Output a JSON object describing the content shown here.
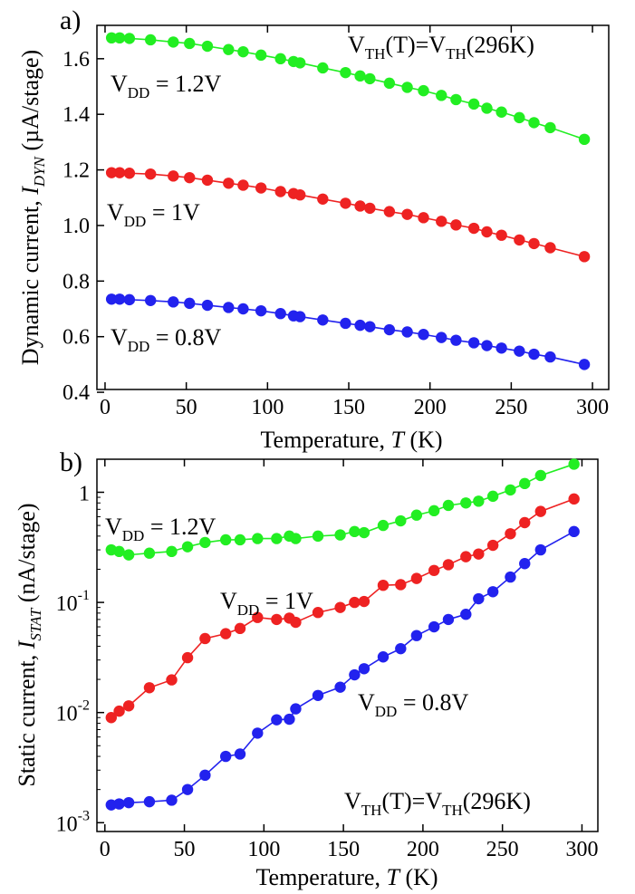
{
  "chart_data": [
    {
      "type": "line",
      "panel_label": "a)",
      "xlabel": "Temperature, T (K)",
      "ylabel": "Dynamic current, I_DYN (µA/stage)",
      "xlim": [
        -5,
        310
      ],
      "ylim": [
        0.41,
        1.72
      ],
      "xticks": [
        "0",
        "50",
        "100",
        "150",
        "200",
        "250",
        "300"
      ],
      "yticks": [
        "0.4",
        "0.6",
        "0.8",
        "1.0",
        "1.2",
        "1.4",
        "1.6"
      ],
      "annotation": "VTH(T)=VTH(296K)",
      "series": [
        {
          "name": "VDD = 1.2V",
          "color": "#22ee22",
          "x": [
            4,
            9,
            15,
            28,
            42,
            52,
            63,
            76,
            85,
            96,
            108,
            116,
            120,
            134,
            148,
            157,
            163,
            175,
            186,
            196,
            207,
            216,
            227,
            235,
            244,
            255,
            264,
            274,
            295
          ],
          "y": [
            1.675,
            1.675,
            1.673,
            1.668,
            1.66,
            1.655,
            1.645,
            1.633,
            1.625,
            1.613,
            1.6,
            1.59,
            1.585,
            1.567,
            1.55,
            1.538,
            1.528,
            1.512,
            1.497,
            1.485,
            1.468,
            1.453,
            1.437,
            1.422,
            1.408,
            1.388,
            1.37,
            1.352,
            1.31
          ]
        },
        {
          "name": "VDD = 1V",
          "color": "#ee2222",
          "x": [
            4,
            9,
            15,
            28,
            42,
            52,
            63,
            76,
            85,
            96,
            108,
            116,
            120,
            134,
            148,
            157,
            163,
            175,
            186,
            196,
            207,
            216,
            227,
            235,
            244,
            255,
            264,
            274,
            295
          ],
          "y": [
            1.19,
            1.19,
            1.188,
            1.185,
            1.178,
            1.172,
            1.163,
            1.152,
            1.145,
            1.135,
            1.122,
            1.115,
            1.11,
            1.095,
            1.08,
            1.07,
            1.062,
            1.05,
            1.04,
            1.028,
            1.015,
            1.002,
            0.99,
            0.977,
            0.965,
            0.948,
            0.935,
            0.92,
            0.888
          ]
        },
        {
          "name": "VDD = 0.8V",
          "color": "#2222ee",
          "x": [
            4,
            9,
            15,
            28,
            42,
            52,
            63,
            76,
            85,
            96,
            108,
            116,
            120,
            134,
            148,
            157,
            163,
            175,
            186,
            196,
            207,
            216,
            227,
            235,
            244,
            255,
            264,
            274,
            295
          ],
          "y": [
            0.735,
            0.735,
            0.733,
            0.73,
            0.725,
            0.72,
            0.713,
            0.705,
            0.7,
            0.693,
            0.683,
            0.675,
            0.672,
            0.66,
            0.648,
            0.641,
            0.636,
            0.625,
            0.617,
            0.608,
            0.597,
            0.587,
            0.578,
            0.568,
            0.559,
            0.548,
            0.537,
            0.527,
            0.5
          ]
        }
      ],
      "labels": [
        {
          "main": "V",
          "sub": "DD",
          "rest": " = 1.2V"
        },
        {
          "main": "V",
          "sub": "DD",
          "rest": " = 1V"
        },
        {
          "main": "V",
          "sub": "DD",
          "rest": " = 0.8V"
        }
      ]
    },
    {
      "type": "line",
      "panel_label": "b)",
      "xlabel": "Temperature, T (K)",
      "ylabel": "Static current, I_STAT (nA/stage)",
      "yscale": "log",
      "xlim": [
        -5,
        310
      ],
      "ylim_log10": [
        -3.08,
        0.3
      ],
      "xticks": [
        "0",
        "50",
        "100",
        "150",
        "200",
        "250",
        "300"
      ],
      "yticks": [
        {
          "base": "1",
          "exp": ""
        },
        {
          "base": "10",
          "exp": "-1"
        },
        {
          "base": "10",
          "exp": "-2"
        },
        {
          "base": "10",
          "exp": "-3"
        }
      ],
      "annotation": "VTH(T)=VTH(296K)",
      "series": [
        {
          "name": "VDD = 1.2V",
          "color": "#22ee22",
          "x": [
            4,
            9,
            15,
            28,
            42,
            52,
            63,
            76,
            85,
            96,
            108,
            116,
            120,
            134,
            148,
            157,
            163,
            175,
            186,
            196,
            207,
            216,
            227,
            235,
            244,
            255,
            264,
            274,
            295
          ],
          "y": [
            0.3,
            0.29,
            0.27,
            0.28,
            0.29,
            0.32,
            0.35,
            0.37,
            0.37,
            0.38,
            0.38,
            0.4,
            0.38,
            0.4,
            0.41,
            0.44,
            0.43,
            0.5,
            0.55,
            0.62,
            0.68,
            0.76,
            0.8,
            0.83,
            0.92,
            1.05,
            1.2,
            1.42,
            1.8
          ]
        },
        {
          "name": "VDD = 1V",
          "color": "#ee2222",
          "x": [
            4,
            9,
            15,
            28,
            42,
            52,
            63,
            76,
            85,
            96,
            108,
            116,
            120,
            134,
            148,
            157,
            163,
            175,
            186,
            196,
            207,
            216,
            227,
            235,
            244,
            255,
            264,
            274,
            295
          ],
          "y": [
            0.009,
            0.0103,
            0.0115,
            0.0168,
            0.0198,
            0.0315,
            0.047,
            0.052,
            0.058,
            0.073,
            0.07,
            0.072,
            0.066,
            0.081,
            0.09,
            0.1,
            0.102,
            0.143,
            0.145,
            0.165,
            0.195,
            0.22,
            0.26,
            0.275,
            0.33,
            0.42,
            0.53,
            0.67,
            0.87
          ]
        },
        {
          "name": "VDD = 0.8V",
          "color": "#2222ee",
          "x": [
            4,
            9,
            15,
            28,
            42,
            52,
            63,
            76,
            85,
            96,
            108,
            116,
            120,
            134,
            148,
            157,
            163,
            175,
            186,
            196,
            207,
            216,
            227,
            235,
            244,
            255,
            264,
            274,
            295
          ],
          "y": [
            0.00145,
            0.00148,
            0.00152,
            0.00155,
            0.0016,
            0.002,
            0.0027,
            0.004,
            0.0042,
            0.0065,
            0.0086,
            0.0087,
            0.0108,
            0.0143,
            0.017,
            0.022,
            0.025,
            0.032,
            0.038,
            0.05,
            0.06,
            0.07,
            0.078,
            0.108,
            0.125,
            0.17,
            0.225,
            0.3,
            0.44
          ]
        }
      ],
      "labels": [
        {
          "main": "V",
          "sub": "DD",
          "rest": " = 1.2V"
        },
        {
          "main": "V",
          "sub": "DD",
          "rest": " = 1V"
        },
        {
          "main": "V",
          "sub": "DD",
          "rest": " = 0.8V"
        }
      ]
    }
  ]
}
